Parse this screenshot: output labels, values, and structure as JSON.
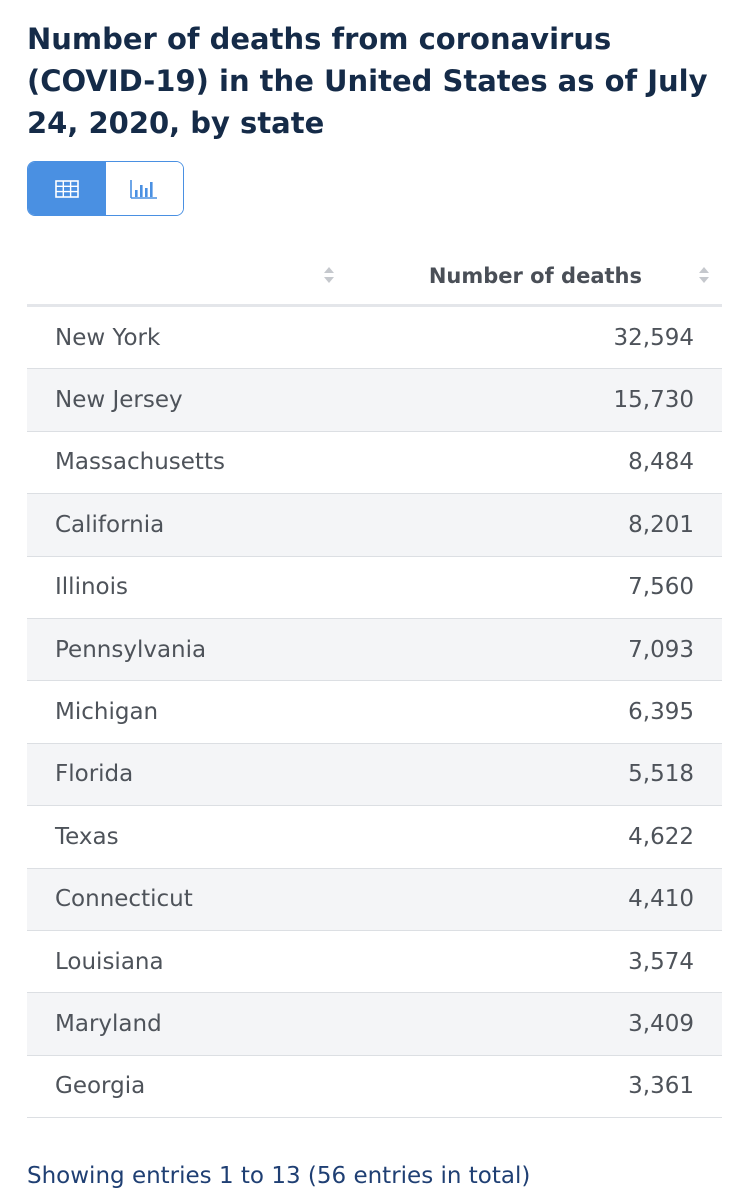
{
  "title": "Number of deaths from coronavirus (COVID-19) in the United States as of July 24, 2020, by state",
  "view_toggle": {
    "options": [
      {
        "name": "table-view",
        "icon": "table-icon",
        "active": true
      },
      {
        "name": "chart-view",
        "icon": "bar-chart-icon",
        "active": false
      }
    ]
  },
  "colors": {
    "title": "#152b48",
    "accent": "#4a90e2",
    "text": "#4e535a",
    "header_text": "#4a4f57",
    "footer": "#1f3f73",
    "row_stripe": "#f4f5f7"
  },
  "table": {
    "columns": [
      "",
      "Number of deaths"
    ],
    "sort_icon": "sort-arrows-icon"
  },
  "chart_data": {
    "type": "table",
    "title": "Number of deaths from coronavirus (COVID-19) in the United States as of July 24, 2020, by state",
    "columns": [
      "",
      "Number of deaths"
    ],
    "rows": [
      {
        "state": "New York",
        "value": "32,594"
      },
      {
        "state": "New Jersey",
        "value": "15,730"
      },
      {
        "state": "Massachusetts",
        "value": "8,484"
      },
      {
        "state": "California",
        "value": "8,201"
      },
      {
        "state": "Illinois",
        "value": "7,560"
      },
      {
        "state": "Pennsylvania",
        "value": "7,093"
      },
      {
        "state": "Michigan",
        "value": "6,395"
      },
      {
        "state": "Florida",
        "value": "5,518"
      },
      {
        "state": "Texas",
        "value": "4,622"
      },
      {
        "state": "Connecticut",
        "value": "4,410"
      },
      {
        "state": "Louisiana",
        "value": "3,574"
      },
      {
        "state": "Maryland",
        "value": "3,409"
      },
      {
        "state": "Georgia",
        "value": "3,361"
      }
    ],
    "categories": [
      "New York",
      "New Jersey",
      "Massachusetts",
      "California",
      "Illinois",
      "Pennsylvania",
      "Michigan",
      "Florida",
      "Texas",
      "Connecticut",
      "Louisiana",
      "Maryland",
      "Georgia"
    ],
    "values": [
      32594,
      15730,
      8484,
      8201,
      7560,
      7093,
      6395,
      5518,
      4622,
      4410,
      3574,
      3409,
      3361
    ]
  },
  "footer": {
    "text": "Showing entries 1 to 13 (56 entries in total)"
  }
}
